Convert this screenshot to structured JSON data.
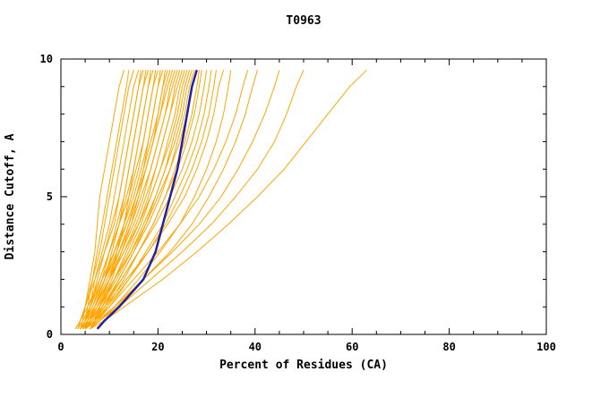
{
  "page": {
    "background": "#ffffff"
  },
  "chart_data": {
    "type": "line",
    "title": "T0963",
    "xlabel": "Percent of Residues (CA)",
    "ylabel": "Distance Cutoff, A",
    "xlim": [
      0,
      100
    ],
    "ylim": [
      0,
      10
    ],
    "x_major_ticks": [
      0,
      20,
      40,
      60,
      80,
      100
    ],
    "x_minor_step": 5,
    "y_major_ticks": [
      0,
      5,
      10
    ],
    "y_minor_step": 1,
    "grid": false,
    "legend": "none",
    "colors": {
      "models": "#ffa500",
      "highlight": "#2020a8",
      "axis": "#000000",
      "background": "#ffffff"
    },
    "y_levels": [
      0.2,
      0.5,
      1,
      2,
      3,
      4,
      5,
      6,
      7,
      8,
      9,
      9.6
    ],
    "model_curves_x": [
      [
        4,
        4.5,
        5,
        6,
        7,
        7.5,
        8,
        9,
        10,
        11,
        12,
        13
      ],
      [
        4,
        5,
        5.5,
        6.5,
        7.5,
        8.5,
        9.5,
        10.5,
        11.5,
        12.5,
        13.5,
        14
      ],
      [
        3.5,
        4,
        5,
        6.5,
        8,
        9,
        10,
        11,
        12,
        13,
        14,
        15
      ],
      [
        5,
        5.5,
        6,
        7,
        8.5,
        10,
        11,
        12,
        13,
        14,
        15,
        16
      ],
      [
        4,
        5,
        6,
        7.5,
        9,
        10.5,
        12,
        13,
        14,
        15,
        16,
        16.5
      ],
      [
        3,
        4,
        5,
        7,
        9,
        11,
        12,
        13,
        14,
        15,
        16,
        17
      ],
      [
        5,
        6,
        7,
        9,
        10.5,
        12,
        13,
        14,
        15,
        16,
        17,
        17.5
      ],
      [
        4,
        5,
        6.5,
        8.5,
        10,
        11.5,
        13,
        14,
        15,
        16,
        17,
        18
      ],
      [
        6,
        7,
        8,
        10,
        11.5,
        13,
        14,
        15,
        16,
        17,
        18,
        18.5
      ],
      [
        4,
        5,
        6,
        8,
        10,
        12,
        13.5,
        15,
        16,
        17,
        18,
        19
      ],
      [
        5,
        6,
        7,
        9,
        11,
        13,
        14.5,
        16,
        17,
        18,
        19,
        19.5
      ],
      [
        3,
        4,
        5.5,
        8,
        10,
        12,
        14,
        15.5,
        17,
        18,
        19,
        20
      ],
      [
        5,
        6,
        7.5,
        10,
        12,
        14,
        15.5,
        17,
        18,
        19,
        20,
        20.5
      ],
      [
        4,
        5,
        6,
        8.5,
        11,
        13,
        15,
        16.5,
        18,
        19,
        20,
        21
      ],
      [
        6,
        7,
        8,
        10.5,
        12.5,
        14.5,
        16,
        17.5,
        19,
        20,
        21,
        21.5
      ],
      [
        4,
        5,
        6.5,
        9,
        11.5,
        13.5,
        15.5,
        17,
        18.5,
        20,
        21,
        22
      ],
      [
        5,
        6,
        7,
        9.5,
        12,
        14,
        16,
        17.5,
        19,
        20.5,
        21.5,
        22.5
      ],
      [
        3.5,
        4.5,
        6,
        8.5,
        11,
        13.5,
        15.5,
        17.5,
        19,
        20.5,
        22,
        23
      ],
      [
        5,
        6,
        7.5,
        10,
        12.5,
        15,
        17,
        18.5,
        20,
        21.5,
        22.5,
        23.5
      ],
      [
        4,
        5,
        6.5,
        9,
        12,
        14.5,
        16.5,
        18.5,
        20,
        21.5,
        23,
        24
      ],
      [
        6,
        7,
        8.5,
        11,
        13.5,
        16,
        18,
        19.5,
        21,
        22.5,
        23.5,
        24.5
      ],
      [
        4.5,
        5.5,
        7,
        10,
        13,
        15.5,
        17.5,
        19.5,
        21,
        22.5,
        24,
        25
      ],
      [
        5,
        6,
        8,
        11,
        14,
        16.5,
        18.5,
        20.5,
        22,
        23.5,
        24.5,
        25.5
      ],
      [
        4,
        5,
        7,
        10,
        13,
        16,
        18.5,
        20.5,
        22.5,
        24,
        25,
        26
      ],
      [
        6,
        7,
        9,
        12,
        15,
        17.5,
        19.5,
        21.5,
        23,
        24.5,
        25.5,
        26.5
      ],
      [
        4.5,
        6,
        8,
        11.5,
        14.5,
        17,
        19.5,
        21.5,
        23.5,
        25,
        26,
        27
      ],
      [
        5,
        6.5,
        8.5,
        12,
        15,
        18,
        20.5,
        22.5,
        24,
        25.5,
        26.5,
        27.5
      ],
      [
        4,
        5.5,
        7.5,
        11,
        14.5,
        17.5,
        20,
        22.5,
        24.5,
        26,
        27,
        28
      ],
      [
        6,
        7.5,
        9.5,
        13,
        16,
        19,
        21.5,
        23.5,
        25.5,
        27,
        28,
        28.5
      ],
      [
        5,
        6.5,
        9,
        12.5,
        16,
        19,
        21.5,
        24,
        26,
        27.5,
        28.5,
        29
      ],
      [
        4,
        6,
        8.5,
        12.5,
        16,
        19.5,
        22.5,
        25,
        27,
        28.5,
        29.5,
        30
      ],
      [
        6,
        7.5,
        10,
        14,
        17.5,
        21,
        23.5,
        26,
        28,
        29.5,
        30.5,
        31
      ],
      [
        5,
        7,
        9.5,
        14,
        18,
        21.5,
        24.5,
        27,
        29,
        30.5,
        31.5,
        32
      ],
      [
        4.5,
        6.5,
        9,
        13.5,
        18,
        22,
        25.5,
        28,
        30,
        31.5,
        32.5,
        33.5
      ],
      [
        6,
        8,
        11,
        16,
        20.5,
        24.5,
        27.5,
        30,
        32,
        33.5,
        34.5,
        35
      ],
      [
        5,
        7,
        10,
        15,
        20,
        24.5,
        28.5,
        31.5,
        34,
        36,
        37.5,
        38.5
      ],
      [
        6,
        8,
        11.5,
        17,
        22.5,
        27,
        30.5,
        33.5,
        36,
        38,
        39.5,
        40.5
      ],
      [
        5,
        7.5,
        11,
        17,
        23,
        28.5,
        33,
        36.5,
        39.5,
        42,
        44,
        45
      ],
      [
        6,
        8,
        12,
        18.5,
        25,
        31,
        36,
        40.5,
        44,
        46.5,
        48.5,
        50
      ],
      [
        6,
        9,
        13,
        21,
        28,
        34.5,
        40.5,
        46,
        50.5,
        55,
        59.5,
        63
      ]
    ],
    "highlight_curve_x": [
      7.5,
      9,
      12,
      17,
      19.5,
      21,
      22.5,
      24,
      25,
      26,
      27,
      28
    ]
  }
}
